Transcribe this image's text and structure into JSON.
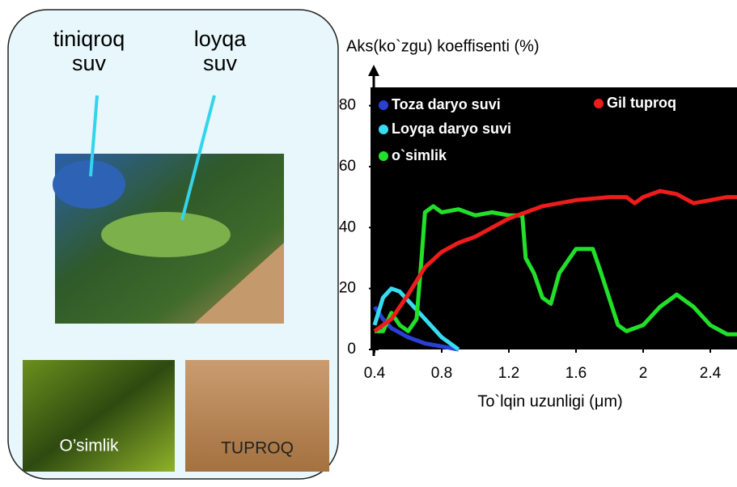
{
  "panel": {
    "clear_label": "tiniqroq\nsuv",
    "turbid_label": "loyqa\nsuv",
    "plant_label": "O’simlik",
    "soil_label": "TUPROQ"
  },
  "chart_data": {
    "type": "line",
    "y_label": "Aks(ko`zgu) koeffisenti (%)",
    "x_label": "To`lqin uzunligi (μm)",
    "xlim": [
      0.38,
      2.56
    ],
    "ylim": [
      0,
      86
    ],
    "xticks": [
      0.4,
      0.8,
      1.2,
      1.6,
      2.0,
      2.4
    ],
    "yticks": [
      0,
      20,
      40,
      60,
      80
    ],
    "series": [
      {
        "name": "Toza daryo suvi",
        "color": "#2a3fd6",
        "x": [
          0.4,
          0.45,
          0.5,
          0.6,
          0.7,
          0.8,
          0.9
        ],
        "values": [
          14,
          10,
          7,
          4,
          2,
          1,
          0
        ]
      },
      {
        "name": "Loyqa daryo suvi",
        "color": "#38dcf0",
        "x": [
          0.4,
          0.45,
          0.5,
          0.55,
          0.6,
          0.7,
          0.8,
          0.9
        ],
        "values": [
          8,
          17,
          20,
          19,
          16,
          10,
          4,
          0
        ]
      },
      {
        "name": "o`simlik",
        "color": "#22e02a",
        "x": [
          0.4,
          0.45,
          0.5,
          0.55,
          0.6,
          0.65,
          0.68,
          0.7,
          0.75,
          0.8,
          0.9,
          1.0,
          1.1,
          1.2,
          1.28,
          1.3,
          1.35,
          1.4,
          1.45,
          1.5,
          1.6,
          1.7,
          1.75,
          1.85,
          1.9,
          2.0,
          2.1,
          2.2,
          2.3,
          2.4,
          2.5,
          2.56
        ],
        "values": [
          6,
          6,
          12,
          8,
          6,
          10,
          30,
          45,
          47,
          45,
          46,
          44,
          45,
          44,
          44,
          30,
          25,
          17,
          15,
          25,
          33,
          33,
          25,
          8,
          6,
          8,
          14,
          18,
          14,
          8,
          5,
          5
        ]
      },
      {
        "name": "Gil tuproq",
        "color": "#ee1c1c",
        "x": [
          0.4,
          0.5,
          0.6,
          0.7,
          0.8,
          0.9,
          1.0,
          1.1,
          1.2,
          1.3,
          1.4,
          1.6,
          1.8,
          1.9,
          1.95,
          2.0,
          2.1,
          2.2,
          2.3,
          2.4,
          2.5,
          2.56
        ],
        "values": [
          6,
          10,
          18,
          27,
          32,
          35,
          37,
          40,
          43,
          45,
          47,
          49,
          50,
          50,
          48,
          50,
          52,
          51,
          48,
          49,
          50,
          50
        ]
      }
    ]
  }
}
